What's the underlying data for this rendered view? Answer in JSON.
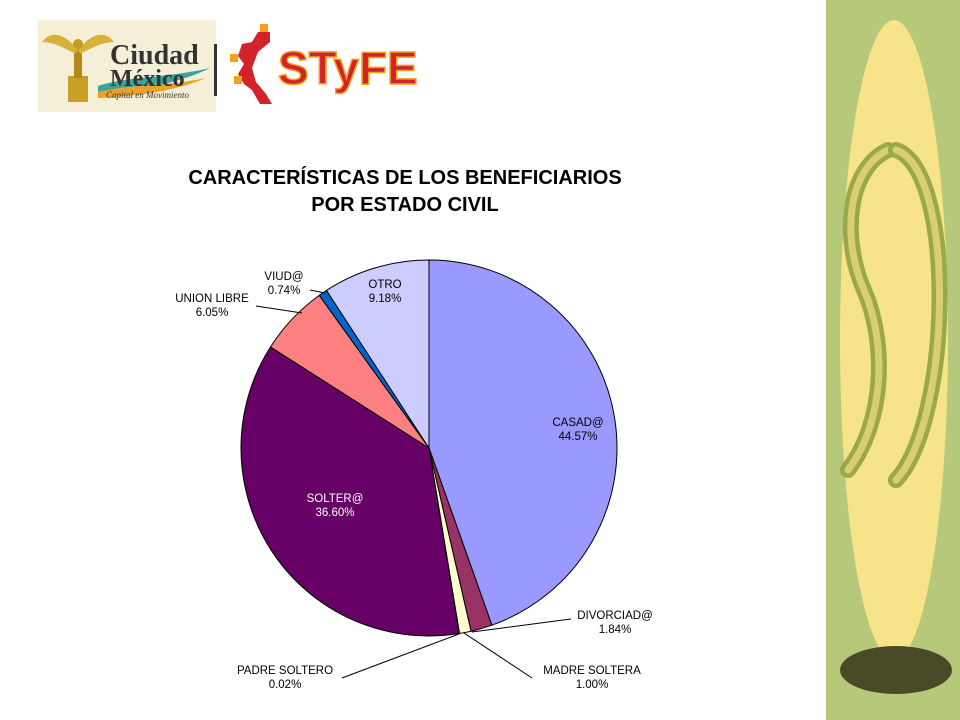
{
  "header": {
    "logo_city_line1": "Ciudad",
    "logo_city_line2": "México",
    "logo_city_tagline": "Capital en Movimiento",
    "logo_styfe": "STyFE"
  },
  "colors": {
    "side_panel": "#b6c97a",
    "side_oval": "#f7e48a",
    "brand_red": "#d2232a",
    "brand_orange": "#f3a01d"
  },
  "chart_data": {
    "type": "pie",
    "title_line1": "CARACTERÍSTICAS DE LOS BENEFICIARIOS",
    "title_line2": "POR ESTADO CIVIL",
    "start": "12 o'clock",
    "direction": "clockwise",
    "slices": [
      {
        "name": "CASAD@",
        "value": 44.57,
        "label": "44.57%",
        "color": "#9999ff"
      },
      {
        "name": "DIVORCIAD@",
        "value": 1.84,
        "label": "1.84%",
        "color": "#993366"
      },
      {
        "name": "MADRE SOLTERA",
        "value": 1.0,
        "label": "1.00%",
        "color": "#ffffcc"
      },
      {
        "name": "PADRE SOLTERO",
        "value": 0.02,
        "label": "0.02%",
        "color": "#ccffff"
      },
      {
        "name": "SOLTER@",
        "value": 36.6,
        "label": "36.60%",
        "color": "#660066"
      },
      {
        "name": "UNION LIBRE",
        "value": 6.05,
        "label": "6.05%",
        "color": "#ff8080"
      },
      {
        "name": "VIUD@",
        "value": 0.74,
        "label": "0.74%",
        "color": "#0066cc"
      },
      {
        "name": "OTRO",
        "value": 9.18,
        "label": "9.18%",
        "color": "#ccccff"
      }
    ]
  }
}
